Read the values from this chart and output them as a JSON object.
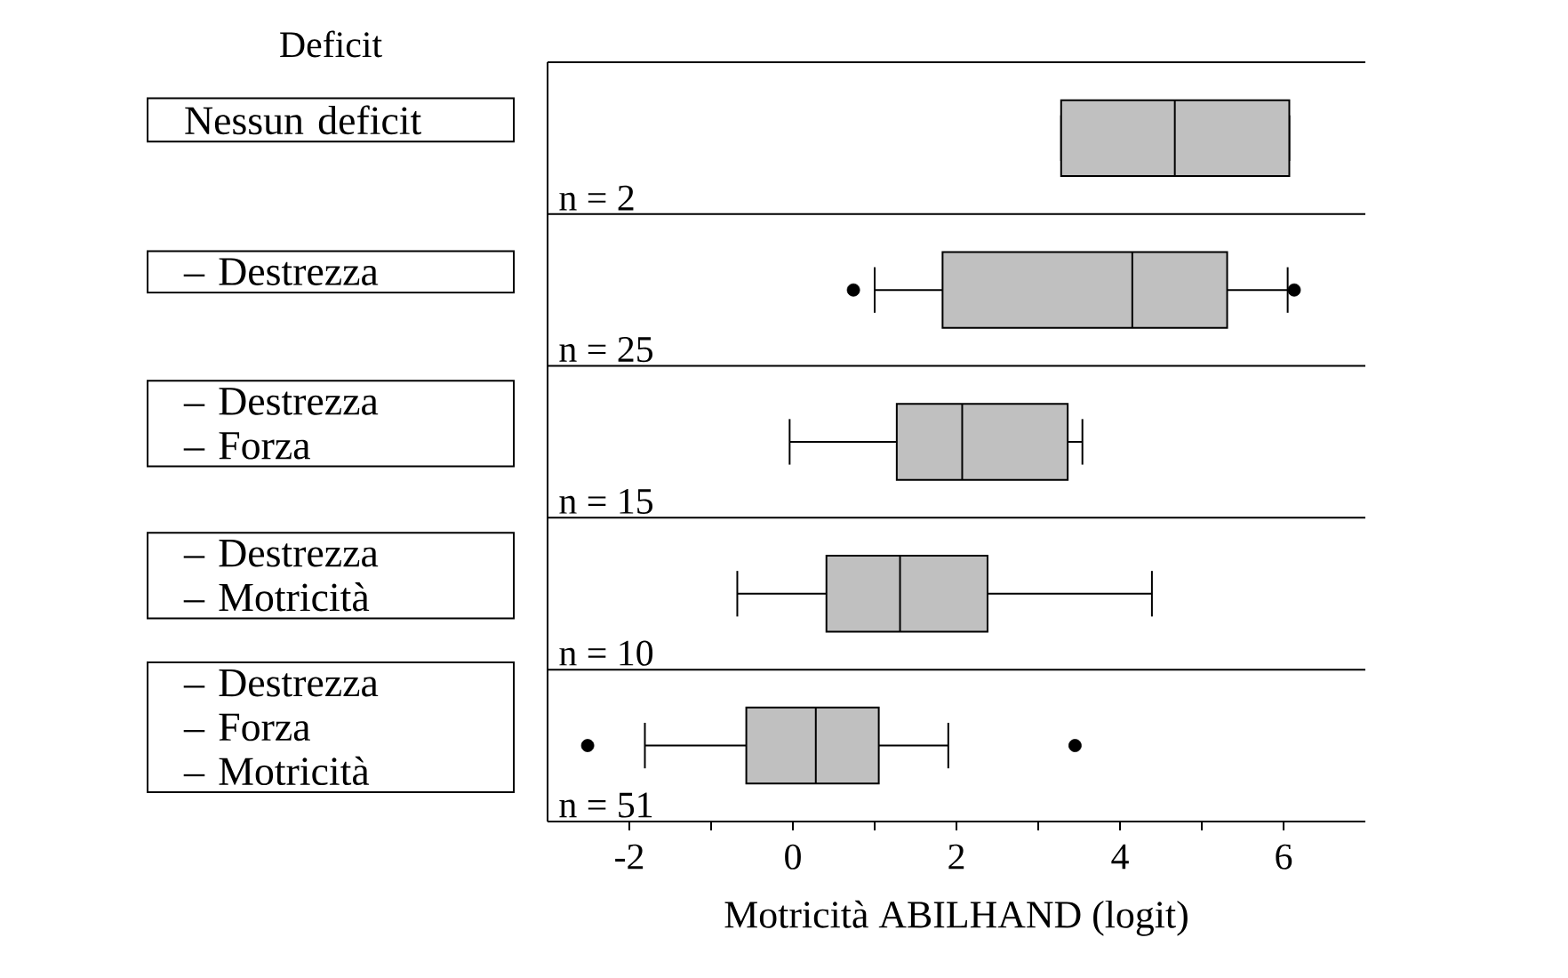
{
  "chart_data": {
    "type": "box",
    "orientation": "horizontal",
    "ylabel": "Deficit",
    "xlabel": "Motricità ABILHAND (logit)",
    "categories": [
      "Nessun deficit",
      "– Destrezza",
      "– Destrezza\n– Forza",
      "– Destrezza\n– Motricità",
      "– Destrezza\n– Forza\n– Motricità"
    ],
    "color": "#c0c0c0",
    "boxes": [
      {
        "low": 3.28,
        "q1": 3.28,
        "median": 4.67,
        "q3": 6.07,
        "high": 6.07
      },
      {
        "low": 1.0,
        "q1": 1.83,
        "median": 4.15,
        "q3": 5.31,
        "high": 6.05,
        "outliers": [
          0.74,
          6.13
        ]
      },
      {
        "low": -0.04,
        "q1": 1.27,
        "median": 2.07,
        "q3": 3.36,
        "high": 3.54
      },
      {
        "low": -0.68,
        "q1": 0.41,
        "median": 1.31,
        "q3": 2.38,
        "high": 4.39
      },
      {
        "low": -1.81,
        "q1": -0.57,
        "median": 0.28,
        "q3": 1.05,
        "high": 1.9,
        "outliers": [
          -2.51,
          3.45
        ]
      }
    ],
    "xlim": [
      -3,
      7
    ],
    "xticks": [
      -2,
      {
        "value": -1,
        "label": null
      },
      0,
      {
        "value": 1,
        "label": null
      },
      2,
      {
        "value": 3,
        "label": null
      },
      4,
      {
        "value": 5,
        "label": null
      },
      6
    ],
    "grid": "y",
    "annotations": [
      "n = 2",
      "n = 25",
      "n = 15",
      "n = 10",
      "n = 51"
    ]
  }
}
